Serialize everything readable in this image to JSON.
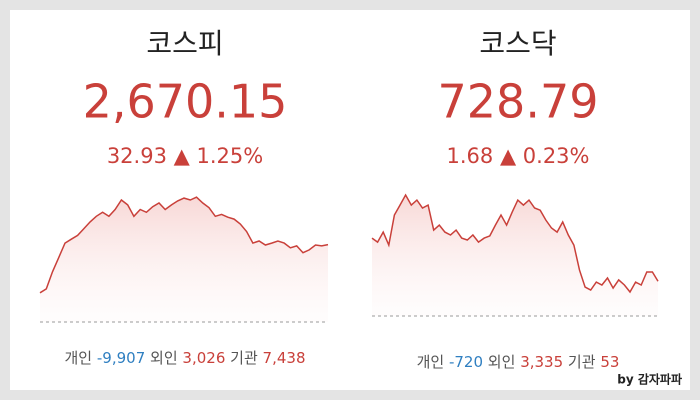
{
  "panels": [
    {
      "name": "코스피",
      "price": "2,670.15",
      "change": "32.93",
      "arrow": "▲",
      "percent": "1.25%",
      "chart": {
        "type": "line",
        "color": "#c9403a",
        "ylim": [
          2637,
          2700
        ],
        "values": [
          2649.5,
          2651.2,
          2658.5,
          2664.7,
          2670.8,
          2672.5,
          2674.1,
          2677.0,
          2679.9,
          2682.3,
          2684.0,
          2682.3,
          2685.2,
          2689.3,
          2687.2,
          2682.3,
          2685.2,
          2684.0,
          2686.4,
          2688.0,
          2685.2,
          2687.2,
          2688.9,
          2690.1,
          2689.3,
          2690.5,
          2688.0,
          2686.0,
          2682.3,
          2683.1,
          2681.9,
          2681.1,
          2679.0,
          2675.8,
          2670.8,
          2671.7,
          2670.0,
          2670.8,
          2671.7,
          2670.8,
          2668.8,
          2669.6,
          2666.7,
          2667.9,
          2670.0,
          2669.6,
          2670.15
        ]
      },
      "flows": [
        {
          "label": "개인",
          "value": "-9,907"
        },
        {
          "label": "외인",
          "value": "3,026"
        },
        {
          "label": "기관",
          "value": "7,438"
        }
      ]
    },
    {
      "name": "코스닥",
      "price": "728.79",
      "change": "1.68",
      "arrow": "▲",
      "percent": "0.23%",
      "chart": {
        "type": "line",
        "color": "#c9403a",
        "ylim": [
          727,
          733.5
        ],
        "values": [
          731.02,
          730.81,
          731.33,
          730.66,
          732.21,
          732.72,
          733.24,
          732.72,
          732.98,
          732.57,
          732.72,
          731.43,
          731.69,
          731.33,
          731.18,
          731.43,
          731.02,
          730.92,
          731.18,
          730.81,
          731.02,
          731.13,
          731.69,
          732.21,
          731.69,
          732.36,
          732.98,
          732.72,
          732.98,
          732.57,
          732.46,
          731.95,
          731.54,
          731.33,
          731.85,
          731.18,
          730.66,
          729.37,
          728.49,
          728.34,
          728.75,
          728.6,
          728.96,
          728.44,
          728.86,
          728.6,
          728.24,
          728.75,
          728.6,
          729.27,
          729.27,
          728.79
        ]
      },
      "flows": [
        {
          "label": "개인",
          "value": "-720"
        },
        {
          "label": "외인",
          "value": "3,335"
        },
        {
          "label": "기관",
          "value": "53"
        }
      ]
    }
  ],
  "watermark": "by 감자파파"
}
